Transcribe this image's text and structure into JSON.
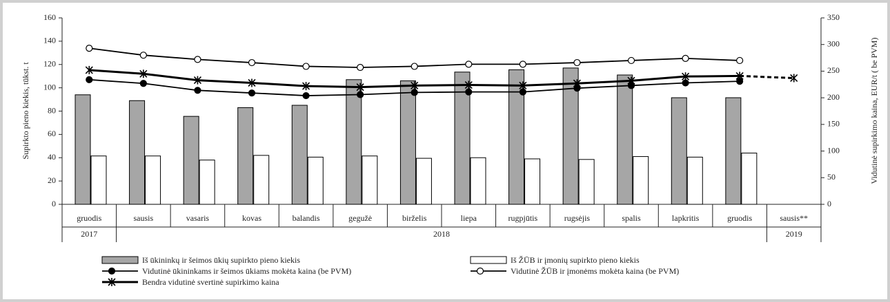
{
  "chart_data": {
    "type": "combo",
    "y_label": "Supirkto pieno kiekis, tūkst. t",
    "y2_label": "Vidutinė supirkimo kaina, EUR/t ( be PVM)",
    "categories": [
      "gruodis",
      "sausis",
      "vasaris",
      "kovas",
      "balandis",
      "gegužė",
      "birželis",
      "liepa",
      "rugpjūtis",
      "rugsėjis",
      "spalis",
      "lapkritis",
      "gruodis",
      "sausis**"
    ],
    "year_groups": [
      {
        "label": "2017",
        "count": 1
      },
      {
        "label": "2018",
        "count": 12
      },
      {
        "label": "2019",
        "count": 1
      }
    ],
    "ylim": [
      0,
      160
    ],
    "yticks": [
      0,
      20,
      40,
      60,
      80,
      100,
      120,
      140,
      160
    ],
    "y2lim": [
      0,
      350
    ],
    "y2ticks": [
      0,
      50,
      100,
      150,
      200,
      250,
      300,
      350
    ],
    "series": [
      {
        "name": "Iš ūkininkų ir šeimos ūkių supirkto pieno kiekis",
        "type": "bar",
        "color": "#a6a6a6",
        "values": [
          94,
          89,
          75.5,
          83,
          85,
          107,
          106,
          113.5,
          115.5,
          117,
          111,
          91.5,
          91.5,
          null
        ]
      },
      {
        "name": "Iš ŽŪB ir įmonių supirkto pieno kiekis",
        "type": "bar",
        "color": "#ffffff",
        "values": [
          41.5,
          41.5,
          38,
          42,
          40.5,
          41.5,
          39.5,
          40,
          39,
          38.5,
          41,
          40.5,
          44,
          null
        ]
      },
      {
        "name": "Vidutinė ūkininkams ir šeimos ūkiams mokėta kaina (be PVM)",
        "type": "line",
        "axis": "y2",
        "color": "#000000",
        "marker": "filled-circle",
        "values": [
          234,
          227,
          214,
          209,
          204,
          206,
          210,
          211,
          211,
          218,
          223,
          228,
          231,
          null
        ]
      },
      {
        "name": "Vidutinė ŽŪB ir įmonėms mokėta kaina (be PVM)",
        "type": "line",
        "axis": "y2",
        "color": "#000000",
        "marker": "open-circle",
        "values": [
          293,
          280,
          272,
          266,
          259,
          257,
          259,
          263,
          263,
          266,
          270,
          274,
          270,
          null
        ]
      },
      {
        "name": "Bendra vidutinė svertinė supirkimo kaina",
        "type": "line",
        "axis": "y2",
        "color": "#000000",
        "marker": "star",
        "values": [
          252,
          245,
          233,
          228,
          222,
          220,
          223,
          224,
          223,
          227,
          232,
          240,
          241,
          237
        ]
      }
    ]
  }
}
